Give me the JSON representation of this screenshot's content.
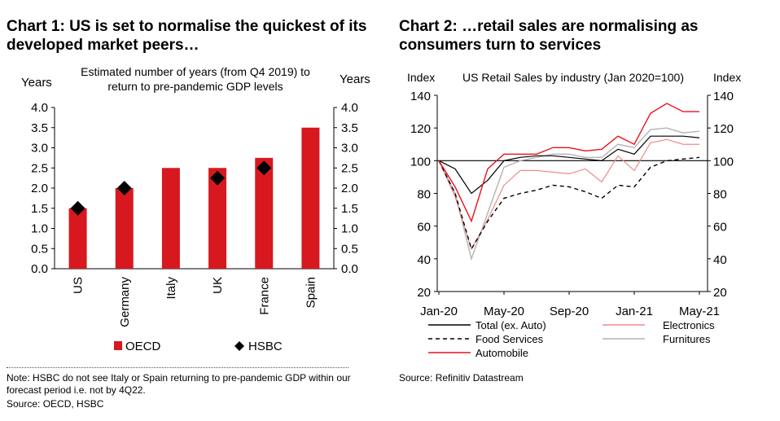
{
  "chart1": {
    "title": "Chart 1: US is set to normalise the quickest of its developed market peers…",
    "note": "Note: HSBC do not see Italy or Spain returning to pre-pandemic GDP within our forecast period i.e. not by 4Q22.",
    "source": "Source: OECD, HSBC"
  },
  "chart2": {
    "title": "Chart 2: …retail sales are normalising as consumers turn to services",
    "source": "Source: Refinitiv Datastream"
  },
  "chart_data": [
    {
      "type": "bar",
      "title": "Estimated number of years (from Q4 2019) to return to pre-pandemic GDP levels",
      "title_lines": [
        "Estimated number of years (from Q4 2019) to",
        "return to pre-pandemic GDP levels"
      ],
      "ylabel_left": "Years",
      "ylabel_right": "Years",
      "categories": [
        "US",
        "Germany",
        "Italy",
        "UK",
        "France",
        "Spain"
      ],
      "ylim": [
        0,
        4
      ],
      "yticks": [
        "0.0",
        "0.5",
        "1.0",
        "1.5",
        "2.0",
        "2.5",
        "3.0",
        "3.5",
        "4.0"
      ],
      "series": [
        {
          "name": "OECD",
          "kind": "bar",
          "color": "#d7181f",
          "values": [
            1.5,
            2.0,
            2.5,
            2.5,
            2.75,
            3.5
          ]
        },
        {
          "name": "HSBC",
          "kind": "marker",
          "color": "#000000",
          "values": [
            1.5,
            2.0,
            null,
            2.25,
            2.5,
            null
          ]
        }
      ],
      "legend": "bottom"
    },
    {
      "type": "line",
      "title": "US Retail Sales by industry (Jan 2020=100)",
      "ylabel_left": "Index",
      "ylabel_right": "Index",
      "ylim": [
        20,
        140
      ],
      "yticks": [
        "20",
        "40",
        "60",
        "80",
        "100",
        "120",
        "140"
      ],
      "xticks": [
        "Jan-20",
        "May-20",
        "Sep-20",
        "Jan-21",
        "May-21"
      ],
      "x": [
        "Jan-20",
        "Feb-20",
        "Mar-20",
        "Apr-20",
        "May-20",
        "Jun-20",
        "Jul-20",
        "Aug-20",
        "Sep-20",
        "Oct-20",
        "Nov-20",
        "Dec-20",
        "Jan-21",
        "Feb-21",
        "Mar-21",
        "Apr-21",
        "May-21"
      ],
      "reference_line": 100,
      "series": [
        {
          "name": "Total (ex. Auto)",
          "color": "#000000",
          "dash": "",
          "width": 1.2,
          "values": [
            100,
            95,
            80,
            88,
            100,
            102,
            103,
            103,
            102,
            101,
            100,
            107,
            104,
            115,
            115,
            115,
            114
          ]
        },
        {
          "name": "Food Services",
          "color": "#000000",
          "dash": "5,4",
          "width": 1.4,
          "values": [
            100,
            80,
            46,
            63,
            77,
            80,
            82,
            85,
            84,
            81,
            77,
            85,
            84,
            96,
            100,
            101,
            102
          ]
        },
        {
          "name": "Automobile",
          "color": "#e8131b",
          "dash": "",
          "width": 1.4,
          "values": [
            100,
            84,
            63,
            95,
            104,
            104,
            104,
            108,
            108,
            106,
            107,
            115,
            110,
            129,
            135,
            130,
            130
          ]
        },
        {
          "name": "Electronics",
          "color": "#f08a8a",
          "dash": "",
          "width": 1.2,
          "values": [
            100,
            78,
            46,
            64,
            85,
            94,
            94,
            93,
            92,
            95,
            87,
            103,
            94,
            111,
            113,
            110,
            110
          ]
        },
        {
          "name": "Furnitures",
          "color": "#b3b3b3",
          "dash": "",
          "width": 1.4,
          "values": [
            100,
            80,
            40,
            68,
            96,
            100,
            102,
            104,
            104,
            102,
            102,
            110,
            108,
            119,
            120,
            117,
            118
          ]
        }
      ],
      "legend": "bottom"
    }
  ]
}
